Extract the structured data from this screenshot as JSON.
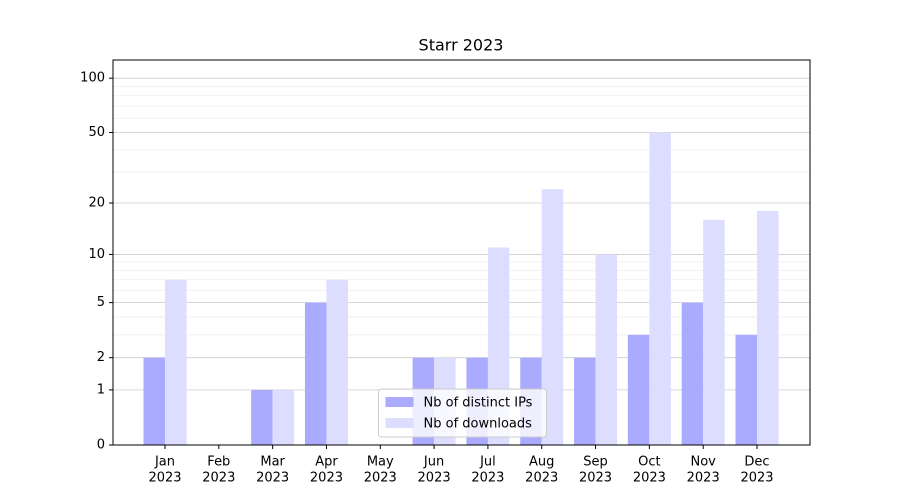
{
  "chart_data": {
    "type": "bar",
    "title": "Starr 2023",
    "categories": [
      [
        "Jan",
        "2023"
      ],
      [
        "Feb",
        "2023"
      ],
      [
        "Mar",
        "2023"
      ],
      [
        "Apr",
        "2023"
      ],
      [
        "May",
        "2023"
      ],
      [
        "Jun",
        "2023"
      ],
      [
        "Jul",
        "2023"
      ],
      [
        "Aug",
        "2023"
      ],
      [
        "Sep",
        "2023"
      ],
      [
        "Oct",
        "2023"
      ],
      [
        "Nov",
        "2023"
      ],
      [
        "Dec",
        "2023"
      ]
    ],
    "series": [
      {
        "name": "Nb of distinct IPs",
        "color": "#aaaaff",
        "values": [
          2,
          0,
          1,
          5,
          0,
          2,
          2,
          2,
          2,
          3,
          5,
          3
        ]
      },
      {
        "name": "Nb of downloads",
        "color": "#ddddff",
        "values": [
          7,
          0,
          1,
          7,
          0,
          2,
          11,
          24,
          10,
          50,
          16,
          18
        ]
      }
    ],
    "yscale": "log1p",
    "ylim": [
      0,
      126
    ],
    "yticks": [
      0,
      1,
      2,
      5,
      10,
      20,
      50,
      100
    ],
    "minor_yticks": [
      3,
      4,
      6,
      7,
      8,
      9,
      30,
      40,
      60,
      70,
      80,
      90
    ],
    "grid": true,
    "legend": "lower center"
  }
}
